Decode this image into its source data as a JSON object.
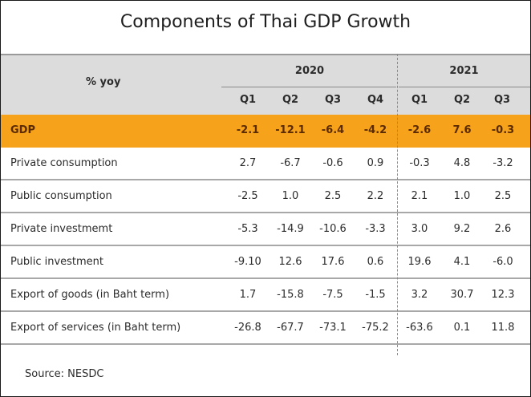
{
  "title": "Components of Thai GDP Growth",
  "header": {
    "unit_label": "% yoy",
    "years": [
      {
        "label": "2020",
        "quarters": [
          "Q1",
          "Q2",
          "Q3",
          "Q4"
        ]
      },
      {
        "label": "2021",
        "quarters": [
          "Q1",
          "Q2",
          "Q3"
        ]
      }
    ]
  },
  "rows": [
    {
      "label": "GDP",
      "values": [
        "-2.1",
        "-12.1",
        "-6.4",
        "-4.2",
        "-2.6",
        "7.6",
        "-0.3"
      ]
    },
    {
      "label": "Private consumption",
      "values": [
        "2.7",
        "-6.7",
        "-0.6",
        "0.9",
        "-0.3",
        "4.8",
        "-3.2"
      ]
    },
    {
      "label": "Public consumption",
      "values": [
        "-2.5",
        "1.0",
        "2.5",
        "2.2",
        "2.1",
        "1.0",
        "2.5"
      ]
    },
    {
      "label": "Private investmemt",
      "values": [
        "-5.3",
        "-14.9",
        "-10.6",
        "-3.3",
        "3.0",
        "9.2",
        "2.6"
      ]
    },
    {
      "label": "Public investment",
      "values": [
        "-9.10",
        "12.6",
        "17.6",
        "0.6",
        "19.6",
        "4.1",
        "-6.0"
      ]
    },
    {
      "label": "Export of goods (in Baht term)",
      "values": [
        "1.7",
        "-15.8",
        "-7.5",
        "-1.5",
        "3.2",
        "30.7",
        "12.3"
      ]
    },
    {
      "label": "Export of services (in Baht term)",
      "values": [
        "-26.8",
        "-67.7",
        "-73.1",
        "-75.2",
        "-63.6",
        "0.1",
        "11.8"
      ]
    }
  ],
  "source": "Source: NESDC",
  "colors": {
    "highlight": "#f7a21b",
    "header_bg": "#dcdcdc"
  }
}
